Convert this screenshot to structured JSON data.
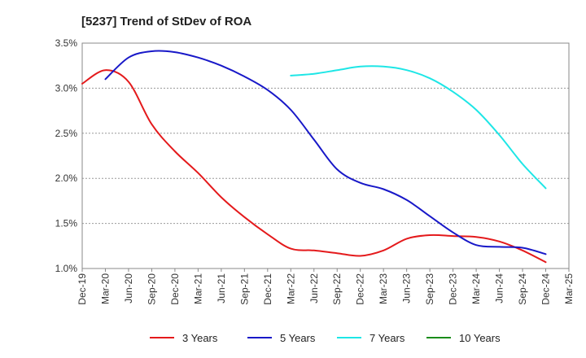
{
  "chart_data": {
    "type": "line",
    "title": "[5237]  Trend of StDev of ROA",
    "xlabel": "",
    "ylabel": "",
    "ylim": [
      1.0,
      3.5
    ],
    "yticks": [
      "1.0%",
      "1.5%",
      "2.0%",
      "2.5%",
      "3.0%",
      "3.5%"
    ],
    "ytick_values": [
      1.0,
      1.5,
      2.0,
      2.5,
      3.0,
      3.5
    ],
    "categories": [
      "Dec-19",
      "Mar-20",
      "Jun-20",
      "Sep-20",
      "Dec-20",
      "Mar-21",
      "Jun-21",
      "Sep-21",
      "Dec-21",
      "Mar-22",
      "Jun-22",
      "Sep-22",
      "Dec-22",
      "Mar-23",
      "Jun-23",
      "Sep-23",
      "Dec-23",
      "Mar-24",
      "Jun-24",
      "Sep-24",
      "Dec-24",
      "Mar-25"
    ],
    "grid": true,
    "legend_position": "bottom",
    "series": [
      {
        "name": "3 Years",
        "color": "#e41a1c",
        "values": [
          3.05,
          3.2,
          3.07,
          2.6,
          2.3,
          2.06,
          1.79,
          1.57,
          1.38,
          1.22,
          1.2,
          1.17,
          1.14,
          1.2,
          1.33,
          1.37,
          1.36,
          1.35,
          1.3,
          1.2,
          1.07,
          null
        ]
      },
      {
        "name": "5 Years",
        "color": "#1818c8",
        "values": [
          null,
          3.1,
          3.34,
          3.41,
          3.4,
          3.34,
          3.25,
          3.13,
          2.98,
          2.76,
          2.43,
          2.1,
          1.95,
          1.88,
          1.76,
          1.58,
          1.4,
          1.26,
          1.24,
          1.23,
          1.16,
          null
        ]
      },
      {
        "name": "7 Years",
        "color": "#1ee6e6",
        "values": [
          null,
          null,
          null,
          null,
          null,
          null,
          null,
          null,
          null,
          3.14,
          3.16,
          3.2,
          3.24,
          3.24,
          3.2,
          3.11,
          2.96,
          2.76,
          2.48,
          2.16,
          1.89,
          null
        ]
      },
      {
        "name": "10 Years",
        "color": "#1a8c1a",
        "values": [
          null,
          null,
          null,
          null,
          null,
          null,
          null,
          null,
          null,
          null,
          null,
          null,
          null,
          null,
          null,
          null,
          null,
          null,
          null,
          null,
          null,
          null
        ]
      }
    ]
  }
}
